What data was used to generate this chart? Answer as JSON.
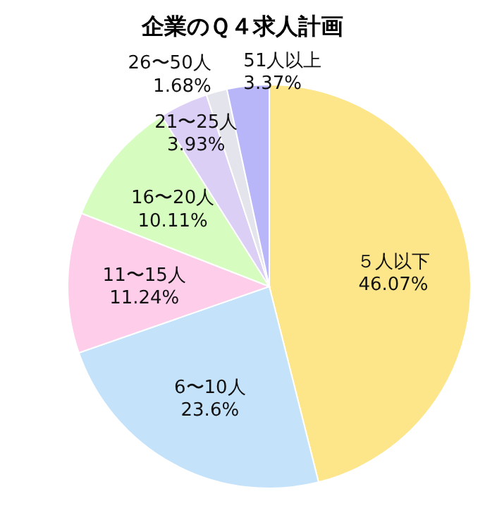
{
  "chart_data": {
    "type": "pie",
    "title": "企業のＱ４求人計画",
    "categories": [
      "５人以下",
      "6〜10人",
      "11〜15人",
      "16〜20人",
      "21〜25人",
      "26〜50人",
      "51人以上"
    ],
    "values": [
      46.07,
      23.6,
      11.24,
      10.11,
      3.93,
      1.68,
      3.37
    ],
    "value_labels": [
      "46.07%",
      "23.6%",
      "11.24%",
      "10.11%",
      "3.93%",
      "1.68%",
      "3.37%"
    ],
    "colors": [
      "#fde58a",
      "#c5e2fb",
      "#fdcdea",
      "#d6fcc0",
      "#dccff5",
      "#e4e4ec",
      "#b8b5f8"
    ]
  }
}
